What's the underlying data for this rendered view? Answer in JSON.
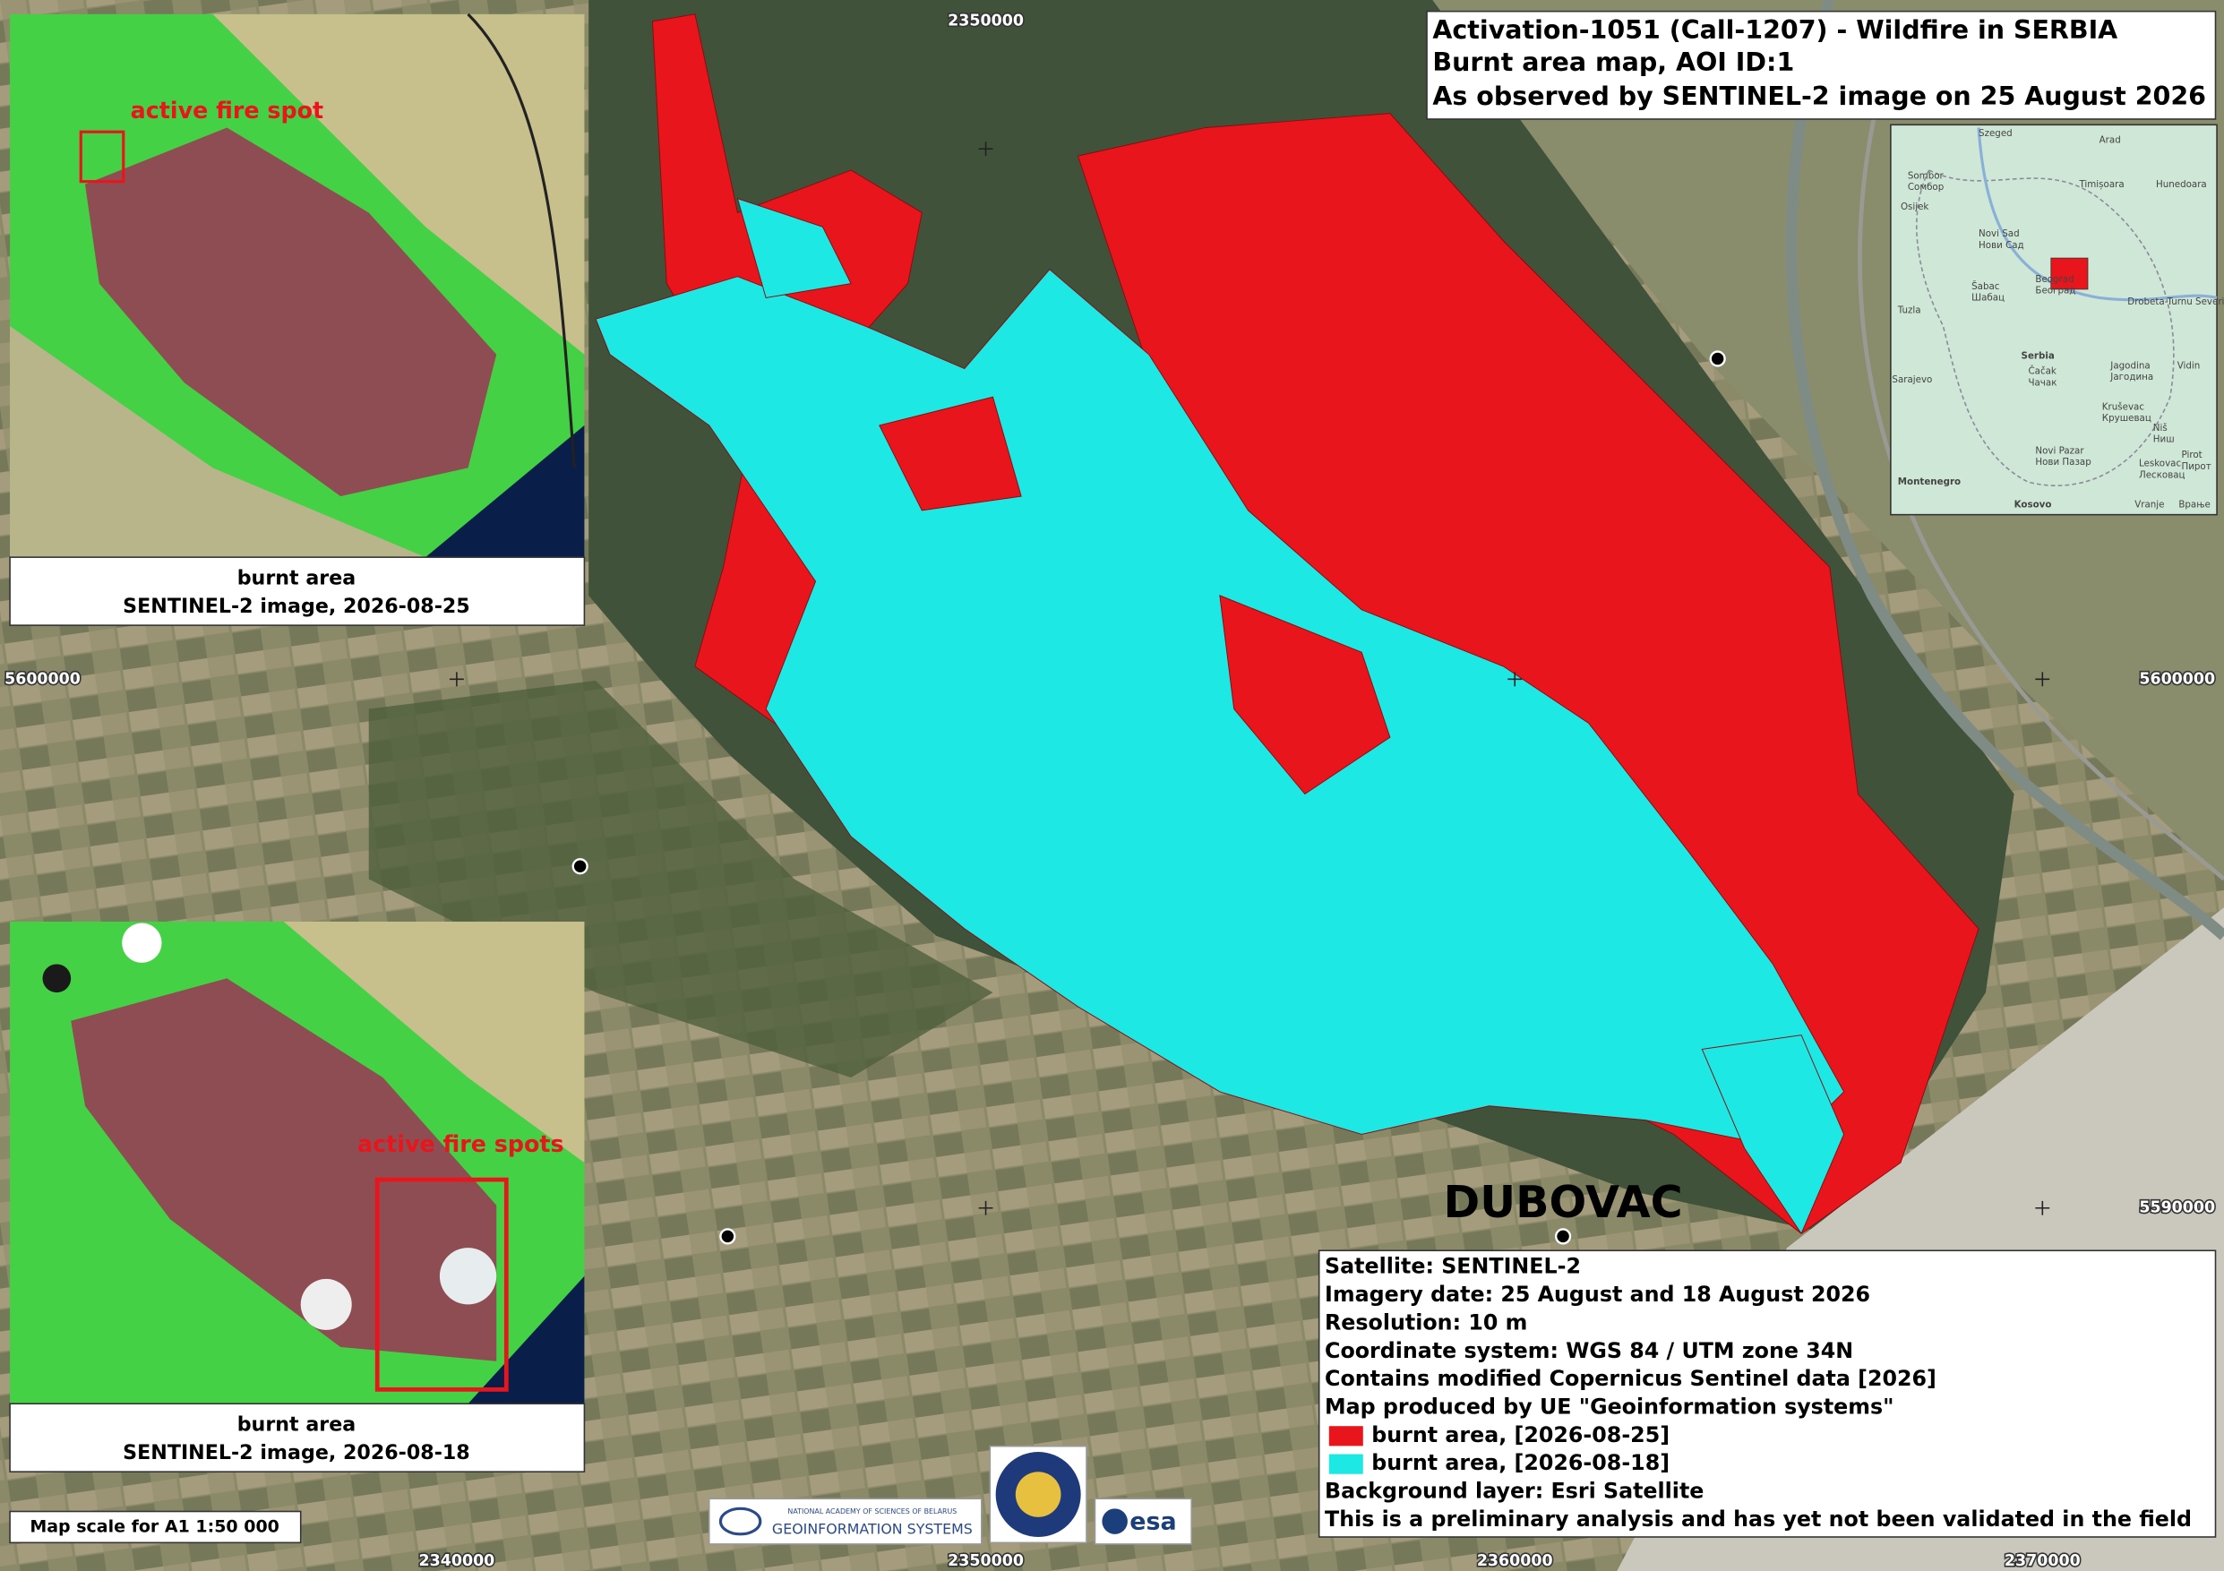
{
  "title": {
    "lines": [
      "Activation-1051 (Call-1207) - Wildfire in SERBIA",
      "Burnt area map, AOI ID:1",
      "As observed by SENTINEL-2 image on 25 August 2026"
    ]
  },
  "insets": [
    {
      "annotation": "active fire spot",
      "caption": [
        "burnt area",
        "SENTINEL-2 image, 2026-08-25"
      ]
    },
    {
      "annotation": "active fire spots",
      "caption": [
        "burnt area",
        "SENTINEL-2 image, 2026-08-18"
      ]
    }
  ],
  "grid_labels": {
    "top": [
      "2350000"
    ],
    "bottom": [
      "2340000",
      "2350000",
      "2360000",
      "2370000"
    ],
    "left": [
      "5600000"
    ],
    "right": [
      "5600000",
      "5590000"
    ]
  },
  "place": "DUBOVAC",
  "locator_map": {
    "labels": [
      "Szeged",
      "Arad",
      "Sombor",
      "Сомбор",
      "Timișoara",
      "Hunedoara",
      "Osijek",
      "Novi Sad",
      "Нови Сад",
      "Tuzla",
      "Šabac",
      "Шабац",
      "Beograd",
      "Београд",
      "Serbia",
      "Drobeta-Turnu Severin",
      "Sarajevo",
      "Čačak",
      "Чачак",
      "Jagodina",
      "Јагодина",
      "Vidin",
      "Kruševac",
      "Крушевац",
      "Niš",
      "Ниш",
      "Novi Pazar",
      "Нови Пазар",
      "Leskovac",
      "Лесковац",
      "Pirot",
      "Пирот",
      "Montenegro",
      "Kosovo",
      "Vranje",
      "Врање"
    ]
  },
  "info": {
    "lines": [
      "Satellite: SENTINEL-2",
      "Imagery date: 25 August and 18 August 2026",
      "Resolution: 10 m",
      "Coordinate system: WGS 84 / UTM zone 34N",
      "Contains modified Copernicus Sentinel data [2026]",
      "Map produced by UE \"Geoinformation systems\""
    ],
    "legend": [
      {
        "label": "burnt area, [2026-08-25]",
        "color": "#e8161c"
      },
      {
        "label": "burnt area, [2026-08-18]",
        "color": "#1de8e4"
      }
    ],
    "notes": [
      "Background layer: Esri Satellite",
      "This is a preliminary analysis and has yet not been validated in the field"
    ]
  },
  "scale": "Map scale for A1 1:50 000",
  "logos": [
    "NATIONAL ACADEMY OF SCIENCES OF BELARUS",
    "GEOINFORMATION SYSTEMS",
    "esa"
  ]
}
